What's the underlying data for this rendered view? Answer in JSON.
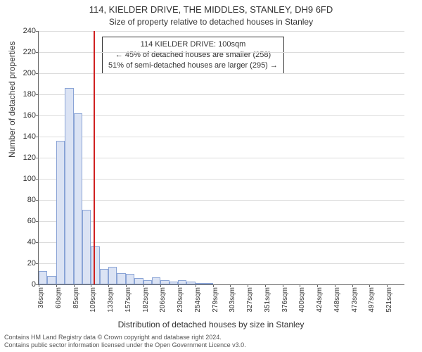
{
  "title": "114, KIELDER DRIVE, THE MIDDLES, STANLEY, DH9 6FD",
  "subtitle": "Size of property relative to detached houses in Stanley",
  "ylabel": "Number of detached properties",
  "xlabel": "Distribution of detached houses by size in Stanley",
  "footer_line1": "Contains HM Land Registry data © Crown copyright and database right 2024.",
  "footer_line2": "Contains public sector information licensed under the Open Government Licence v3.0.",
  "annotation": {
    "line1": "114 KIELDER DRIVE: 100sqm",
    "line2": "← 45% of detached houses are smaller (258)",
    "line3": "51% of semi-detached houses are larger (295) →"
  },
  "chart": {
    "type": "histogram",
    "ylim": [
      0,
      240
    ],
    "ytick_step": 20,
    "bar_fill": "#dbe3f4",
    "bar_stroke": "#8aa4d6",
    "grid_color": "#dcdcdc",
    "background_color": "#ffffff",
    "marker_value_sqm": 100,
    "marker_color": "#d02020",
    "values": [
      13,
      8,
      136,
      186,
      162,
      71,
      36,
      15,
      17,
      11,
      10,
      6,
      4,
      7,
      4,
      3,
      4,
      3,
      1,
      1,
      0,
      0,
      0,
      0,
      0,
      0,
      0,
      0,
      0,
      0,
      0,
      0,
      0,
      0,
      0,
      0,
      0,
      0,
      0,
      0,
      0,
      0
    ],
    "x_labels": [
      "36sqm",
      "60sqm",
      "85sqm",
      "109sqm",
      "133sqm",
      "157sqm",
      "182sqm",
      "206sqm",
      "230sqm",
      "254sqm",
      "279sqm",
      "303sqm",
      "327sqm",
      "351sqm",
      "376sqm",
      "400sqm",
      "424sqm",
      "448sqm",
      "473sqm",
      "497sqm",
      "521sqm"
    ],
    "x_label_every": 2,
    "x_min_sqm": 24,
    "x_max_sqm": 533
  }
}
